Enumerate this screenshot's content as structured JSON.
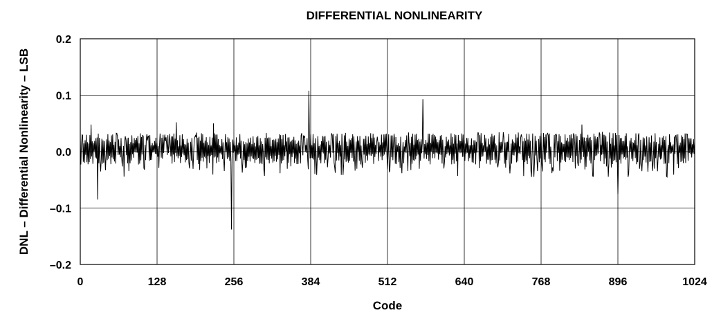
{
  "chart_data": {
    "type": "line",
    "title": "DIFFERENTIAL NONLINEARITY",
    "xlabel": "Code",
    "ylabel": "DNL – Differential Nonlinearity – LSB",
    "xlim": [
      0,
      1024
    ],
    "ylim": [
      -0.2,
      0.2
    ],
    "x_ticks": [
      "0",
      "128",
      "256",
      "384",
      "512",
      "640",
      "768",
      "896",
      "1024"
    ],
    "y_ticks": [
      "0.2",
      "0.1",
      "0.0",
      "–0.1",
      "–0.2"
    ],
    "grid": true,
    "line_color": "#000000",
    "noise_band": [
      -0.045,
      0.035
    ],
    "spikes": [
      {
        "x": 3,
        "y": 0.03
      },
      {
        "x": 18,
        "y": 0.048
      },
      {
        "x": 29,
        "y": -0.085
      },
      {
        "x": 160,
        "y": 0.052
      },
      {
        "x": 222,
        "y": 0.05
      },
      {
        "x": 252,
        "y": -0.138
      },
      {
        "x": 381,
        "y": 0.108
      },
      {
        "x": 571,
        "y": 0.093
      },
      {
        "x": 836,
        "y": 0.048
      },
      {
        "x": 896,
        "y": -0.075
      }
    ]
  }
}
